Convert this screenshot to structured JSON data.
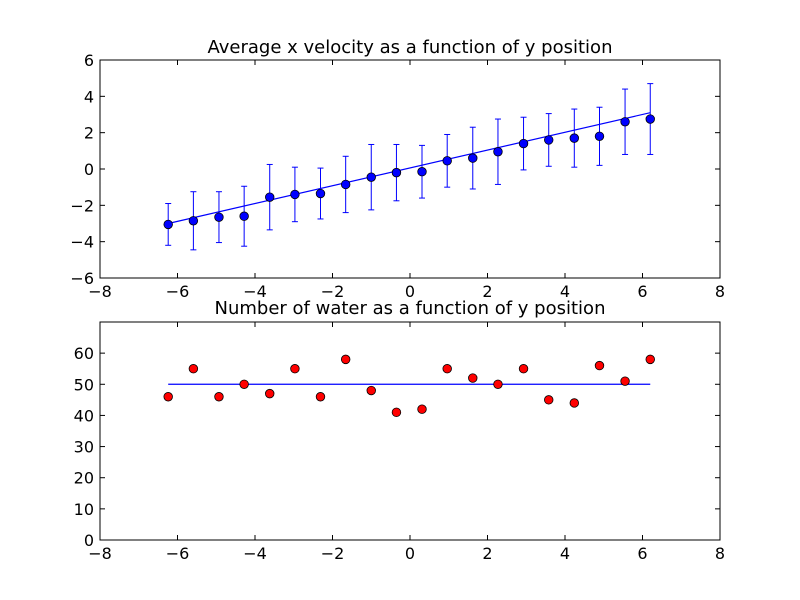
{
  "chart_data": [
    {
      "type": "scatter",
      "title": "Average x velocity as a function of y position",
      "xlabel": "",
      "ylabel": "",
      "xlim": [
        -8,
        8
      ],
      "ylim": [
        -6,
        6
      ],
      "xticks": [
        "−8",
        "−6",
        "−4",
        "−2",
        "0",
        "2",
        "4",
        "6",
        "8"
      ],
      "yticks": [
        "−6",
        "−4",
        "−2",
        "0",
        "2",
        "4",
        "6"
      ],
      "grid": false,
      "marker_color": "#0000ff",
      "line_color": "#0000ff",
      "points": [
        {
          "x": -6.24,
          "y": -3.05,
          "err": 1.15
        },
        {
          "x": -5.59,
          "y": -2.85,
          "err": 1.6
        },
        {
          "x": -4.93,
          "y": -2.65,
          "err": 1.4
        },
        {
          "x": -4.28,
          "y": -2.6,
          "err": 1.65
        },
        {
          "x": -3.62,
          "y": -1.55,
          "err": 1.8
        },
        {
          "x": -2.97,
          "y": -1.4,
          "err": 1.5
        },
        {
          "x": -2.31,
          "y": -1.35,
          "err": 1.4
        },
        {
          "x": -1.66,
          "y": -0.85,
          "err": 1.55
        },
        {
          "x": -1.0,
          "y": -0.45,
          "err": 1.8
        },
        {
          "x": -0.35,
          "y": -0.2,
          "err": 1.55
        },
        {
          "x": 0.31,
          "y": -0.15,
          "err": 1.45
        },
        {
          "x": 0.96,
          "y": 0.45,
          "err": 1.45
        },
        {
          "x": 1.62,
          "y": 0.6,
          "err": 1.7
        },
        {
          "x": 2.27,
          "y": 0.95,
          "err": 1.8
        },
        {
          "x": 2.93,
          "y": 1.4,
          "err": 1.45
        },
        {
          "x": 3.58,
          "y": 1.6,
          "err": 1.45
        },
        {
          "x": 4.24,
          "y": 1.7,
          "err": 1.6
        },
        {
          "x": 4.89,
          "y": 1.8,
          "err": 1.6
        },
        {
          "x": 5.55,
          "y": 2.6,
          "err": 1.8
        },
        {
          "x": 6.2,
          "y": 2.75,
          "err": 1.95
        }
      ],
      "fit_line": {
        "x": [
          -6.24,
          6.2
        ],
        "y": [
          -3.0,
          3.1
        ]
      }
    },
    {
      "type": "scatter",
      "title": "Number of water as a function of y position",
      "xlabel": "",
      "ylabel": "",
      "xlim": [
        -8,
        8
      ],
      "ylim": [
        0,
        70
      ],
      "xticks": [
        "−8",
        "−6",
        "−4",
        "−2",
        "0",
        "2",
        "4",
        "6",
        "8"
      ],
      "yticks": [
        "0",
        "10",
        "20",
        "30",
        "40",
        "50",
        "60"
      ],
      "grid": false,
      "marker_color": "#ff0000",
      "line_color": "#0000ff",
      "points": [
        {
          "x": -6.24,
          "y": 46
        },
        {
          "x": -5.59,
          "y": 55
        },
        {
          "x": -4.93,
          "y": 46
        },
        {
          "x": -4.28,
          "y": 50
        },
        {
          "x": -3.62,
          "y": 47
        },
        {
          "x": -2.97,
          "y": 55
        },
        {
          "x": -2.31,
          "y": 46
        },
        {
          "x": -1.66,
          "y": 58
        },
        {
          "x": -1.0,
          "y": 48
        },
        {
          "x": -0.35,
          "y": 41
        },
        {
          "x": 0.31,
          "y": 42
        },
        {
          "x": 0.96,
          "y": 55
        },
        {
          "x": 1.62,
          "y": 52
        },
        {
          "x": 2.27,
          "y": 50
        },
        {
          "x": 2.93,
          "y": 55
        },
        {
          "x": 3.58,
          "y": 45
        },
        {
          "x": 4.24,
          "y": 44
        },
        {
          "x": 4.89,
          "y": 56
        },
        {
          "x": 5.55,
          "y": 51
        },
        {
          "x": 6.2,
          "y": 58
        }
      ],
      "fit_line": {
        "x": [
          -6.24,
          6.2
        ],
        "y": [
          50,
          50
        ]
      }
    }
  ]
}
